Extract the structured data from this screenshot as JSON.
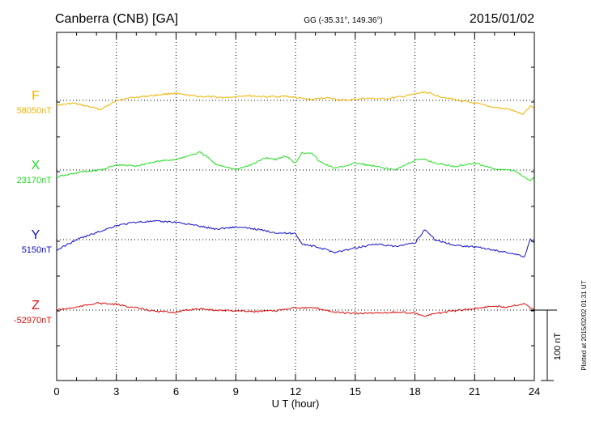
{
  "chart_data": {
    "type": "line",
    "title_left": "Canberra (CNB)  [GA]",
    "title_center": "GG (-35.31°, 149.36°)",
    "title_right": "2015/01/02",
    "xlabel": "U T (hour)",
    "xlim": [
      0,
      24
    ],
    "xticks": [
      "0",
      "3",
      "6",
      "9",
      "12",
      "15",
      "18",
      "21",
      "24"
    ],
    "scale_label": "100 nT",
    "scale_nT": 100,
    "plotted_note": "Plotted at 2015/02/02 01:31  UT",
    "series": [
      {
        "name": "F",
        "baseline_label": "58050nT",
        "color": "#f0b400",
        "x": [
          0,
          0.8,
          1.5,
          2.2,
          3.2,
          4.5,
          5.8,
          7,
          8.5,
          9.5,
          10.5,
          11.5,
          12.8,
          13.5,
          14.5,
          15.5,
          16.5,
          17.5,
          18.5,
          19.2,
          20.2,
          21,
          22,
          22.8,
          23.4,
          23.8,
          24
        ],
        "y": [
          -7,
          -4,
          -8,
          -13,
          2,
          6,
          10,
          6,
          4,
          7,
          5,
          6,
          1,
          4,
          0,
          3,
          2,
          6,
          12,
          6,
          0,
          -4,
          -10,
          -13,
          -20,
          -8,
          -9
        ]
      },
      {
        "name": "X",
        "baseline_label": "23170nT",
        "color": "#22dd22",
        "x": [
          0,
          1.2,
          2.2,
          3,
          4,
          5,
          6,
          7.2,
          7.5,
          8,
          8.5,
          9,
          10,
          10.5,
          11,
          11.5,
          12,
          12.3,
          12.8,
          13.2,
          14,
          15,
          16,
          17,
          18,
          18.5,
          19,
          20,
          21,
          22,
          23,
          23.8,
          24
        ],
        "y": [
          -10,
          -3,
          0,
          7,
          6,
          12,
          15,
          25,
          20,
          8,
          5,
          0,
          10,
          18,
          15,
          20,
          10,
          24,
          25,
          12,
          2,
          10,
          5,
          0,
          14,
          15,
          10,
          5,
          10,
          2,
          -1,
          -15,
          -10
        ]
      },
      {
        "name": "Y",
        "baseline_label": "5150nT",
        "color": "#1111cc",
        "x": [
          0,
          1,
          2,
          3,
          4,
          5,
          6,
          7,
          8,
          9,
          10,
          11,
          11.5,
          12,
          12.3,
          12.6,
          13,
          13.5,
          14,
          15,
          16,
          17,
          18,
          18.5,
          19,
          20,
          21,
          22,
          23,
          23.5,
          23.8,
          24
        ],
        "y": [
          -15,
          0,
          10,
          20,
          25,
          26,
          25,
          20,
          15,
          18,
          15,
          10,
          9,
          9,
          -5,
          -8,
          -10,
          -14,
          -18,
          -12,
          -6,
          -10,
          -5,
          15,
          0,
          -8,
          -10,
          -15,
          -20,
          -25,
          2,
          -5
        ]
      },
      {
        "name": "Z",
        "baseline_label": "-52970nT",
        "color": "#dd1111",
        "x": [
          0,
          1,
          2,
          3,
          4,
          5,
          6,
          7,
          8,
          9,
          10,
          11,
          12,
          12.5,
          13,
          14,
          15,
          16,
          17,
          18,
          18.5,
          19,
          20,
          21,
          22,
          22.5,
          23,
          23.5,
          23.8,
          24
        ],
        "y": [
          0,
          4,
          10,
          8,
          3,
          -2,
          -3,
          2,
          0,
          -1,
          -2,
          -1,
          4,
          3,
          3,
          -3,
          -5,
          -4,
          -3,
          -4,
          -9,
          -5,
          -1,
          2,
          6,
          4,
          7,
          9,
          4,
          0
        ]
      }
    ]
  }
}
